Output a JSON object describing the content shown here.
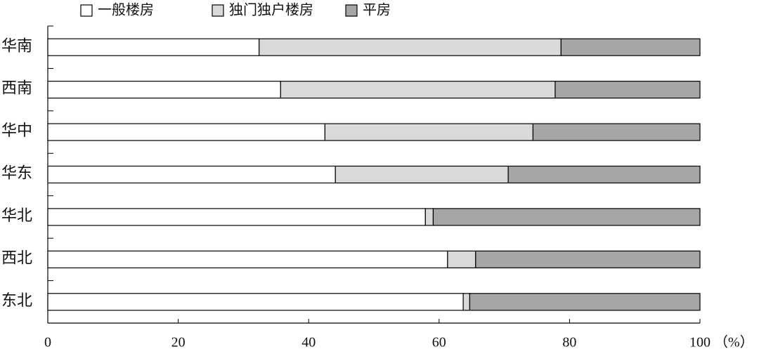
{
  "chart_data": {
    "type": "bar",
    "orientation": "horizontal",
    "stacked": true,
    "categories": [
      "华南",
      "西南",
      "华中",
      "华东",
      "华北",
      "西北",
      "东北"
    ],
    "series": [
      {
        "name": "一般楼房",
        "color": "#ffffff",
        "values": [
          32.4,
          35.7,
          42.5,
          44.1,
          57.9,
          61.3,
          63.7
        ]
      },
      {
        "name": "独门独户楼房",
        "color": "#d9d9d9",
        "values": [
          46.3,
          42.1,
          31.9,
          26.5,
          1.2,
          4.3,
          1.0
        ]
      },
      {
        "name": "平房",
        "color": "#a6a6a6",
        "values": [
          21.3,
          22.2,
          25.6,
          29.4,
          40.9,
          34.4,
          35.3
        ]
      }
    ],
    "x_label": "（%）",
    "xlim": [
      0,
      100
    ],
    "xticks": [
      0,
      20,
      40,
      60,
      80,
      100
    ],
    "legend": "top"
  }
}
